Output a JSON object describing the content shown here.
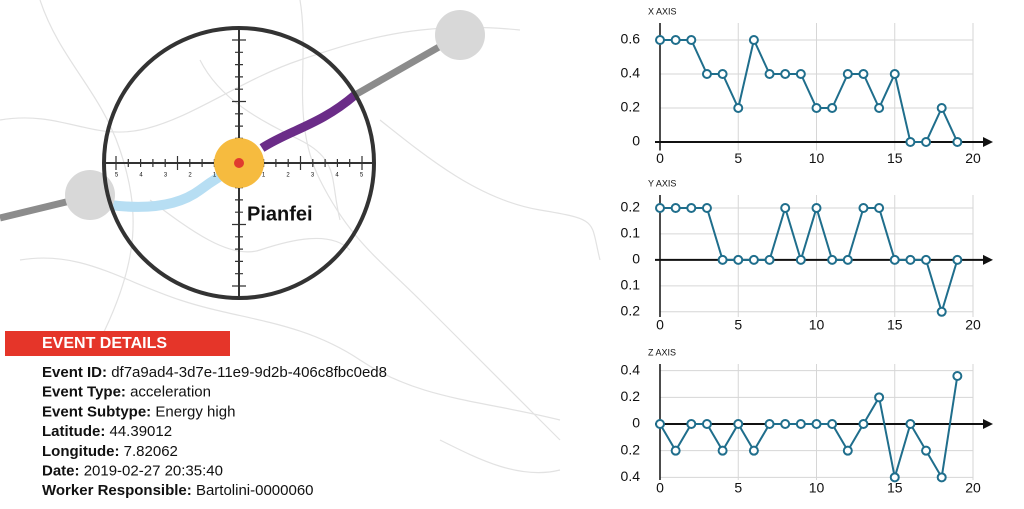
{
  "map": {
    "place": "Pianfei",
    "scale_labels": [
      "5",
      "4",
      "3",
      "2",
      "1",
      "1",
      "2",
      "3",
      "4",
      "5"
    ]
  },
  "event_details": {
    "title": "EVENT DETAILS",
    "fields": [
      {
        "label": "Event ID:",
        "value": "df7a9ad4-3d7e-11e9-9d2b-406c8fbc0ed8"
      },
      {
        "label": "Event Type:",
        "value": "acceleration"
      },
      {
        "label": "Event Subtype:",
        "value": "Energy high"
      },
      {
        "label": "Latitude:",
        "value": "44.39012"
      },
      {
        "label": "Longitude:",
        "value": "7.82062"
      },
      {
        "label": "Date:",
        "value": "2019-02-27 20:35:40"
      },
      {
        "label": "Worker Responsible:",
        "value": "Bartolini-0000060"
      }
    ]
  },
  "chart_data": [
    {
      "type": "line",
      "axis_label": "X AXIS",
      "color": "#1f6e8c",
      "grid": true,
      "x": [
        0,
        1,
        2,
        3,
        4,
        5,
        6,
        7,
        8,
        9,
        10,
        11,
        12,
        13,
        14,
        15,
        16,
        17,
        18,
        19
      ],
      "values": [
        0.6,
        0.6,
        0.6,
        0.4,
        0.4,
        0.2,
        0.6,
        0.4,
        0.4,
        0.4,
        0.2,
        0.2,
        0.4,
        0.4,
        0.2,
        0.4,
        0,
        0,
        0.2,
        0
      ],
      "xlim": [
        0,
        20
      ],
      "xticks": [
        0,
        5,
        10,
        15,
        20
      ],
      "ylim": [
        -0.05,
        0.7
      ],
      "yticks": [
        0,
        0.2,
        0.4,
        0.6
      ]
    },
    {
      "type": "line",
      "axis_label": "Y AXIS",
      "color": "#1f6e8c",
      "grid": true,
      "x": [
        0,
        1,
        2,
        3,
        4,
        5,
        6,
        7,
        8,
        9,
        10,
        11,
        12,
        13,
        14,
        15,
        16,
        17,
        18,
        19
      ],
      "values": [
        0.2,
        0.2,
        0.2,
        0.2,
        0,
        0,
        0,
        0,
        0.2,
        0,
        0.2,
        0,
        0,
        0.2,
        0.2,
        0,
        0,
        0,
        -0.2,
        0
      ],
      "xlim": [
        0,
        20
      ],
      "xticks": [
        0,
        5,
        10,
        15,
        20
      ],
      "ylim": [
        -0.22,
        0.25
      ],
      "yticks": [
        {
          "value": -0.2,
          "label": "0.2"
        },
        {
          "value": -0.1,
          "label": "0.1"
        },
        0,
        0.1,
        0.2
      ]
    },
    {
      "type": "line",
      "axis_label": "Z AXIS",
      "color": "#1f6e8c",
      "grid": true,
      "x": [
        0,
        1,
        2,
        3,
        4,
        5,
        6,
        7,
        8,
        9,
        10,
        11,
        12,
        13,
        14,
        15,
        16,
        17,
        18,
        19
      ],
      "values": [
        0,
        -0.2,
        0,
        0,
        -0.2,
        0,
        -0.2,
        0,
        0,
        0,
        0,
        0,
        -0.2,
        0,
        0.2,
        -0.4,
        0,
        -0.2,
        -0.4,
        0.36
      ],
      "xlim": [
        0,
        20
      ],
      "xticks": [
        0,
        5,
        10,
        15,
        20
      ],
      "ylim": [
        -0.42,
        0.45
      ],
      "yticks": [
        {
          "value": -0.4,
          "label": "0.4"
        },
        {
          "value": -0.2,
          "label": "0.2"
        },
        0,
        0.2,
        0.4
      ]
    }
  ]
}
